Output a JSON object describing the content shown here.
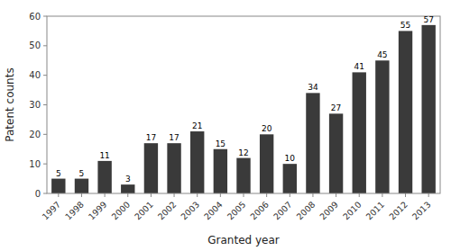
{
  "chart_data": {
    "type": "bar",
    "categories": [
      "1997",
      "1998",
      "1999",
      "2000",
      "2001",
      "2002",
      "2003",
      "2004",
      "2005",
      "2006",
      "2007",
      "2008",
      "2009",
      "2010",
      "2011",
      "2012",
      "2013"
    ],
    "values": [
      5,
      5,
      11,
      3,
      17,
      17,
      21,
      15,
      12,
      20,
      10,
      34,
      27,
      41,
      45,
      55,
      57
    ],
    "color": "#3a3a3a",
    "xlabel": "Granted year",
    "ylabel": "Patent counts",
    "ylim": [
      0,
      60
    ],
    "yticks": [
      0,
      10,
      20,
      30,
      40,
      50,
      60
    ],
    "grid": false,
    "data_labels": true
  }
}
